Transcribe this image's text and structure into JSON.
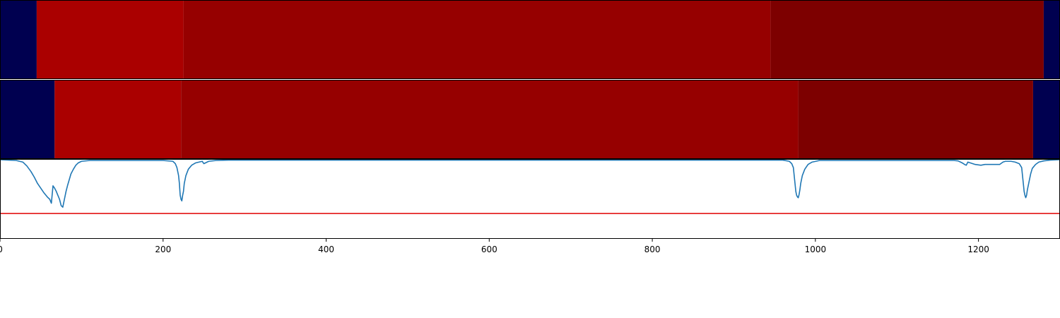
{
  "chart_data": {
    "type": "heatmap",
    "x_axis": {
      "range": [
        0,
        1300
      ],
      "ticks": [
        0,
        200,
        400,
        600,
        800,
        1000,
        1200
      ],
      "tick_labels": [
        "0",
        "200",
        "400",
        "600",
        "800",
        "1000",
        "1200"
      ]
    },
    "tracks": [
      {
        "segments": [
          {
            "start": 0,
            "end": 45,
            "color": "#000050"
          },
          {
            "start": 45,
            "end": 225,
            "color": "#aa0000"
          },
          {
            "start": 225,
            "end": 945,
            "color": "#960000"
          },
          {
            "start": 945,
            "end": 1280,
            "color": "#7d0000"
          },
          {
            "start": 1280,
            "end": 1300,
            "color": "#000050"
          }
        ]
      },
      {
        "segments": [
          {
            "start": 0,
            "end": 67,
            "color": "#000050"
          },
          {
            "start": 67,
            "end": 222,
            "color": "#aa0000"
          },
          {
            "start": 222,
            "end": 979,
            "color": "#960000"
          },
          {
            "start": 979,
            "end": 1267,
            "color": "#7d0000"
          },
          {
            "start": 1267,
            "end": 1300,
            "color": "#000050"
          }
        ]
      }
    ],
    "signal": {
      "color": "#1f77b4",
      "y_range": [
        0,
        1
      ],
      "threshold": {
        "value": 0.32,
        "color": "#e00000"
      },
      "points": [
        [
          0,
          1.0
        ],
        [
          20,
          0.99
        ],
        [
          28,
          0.97
        ],
        [
          33,
          0.92
        ],
        [
          38,
          0.85
        ],
        [
          42,
          0.78
        ],
        [
          46,
          0.7
        ],
        [
          50,
          0.64
        ],
        [
          54,
          0.58
        ],
        [
          58,
          0.53
        ],
        [
          61,
          0.5
        ],
        [
          63,
          0.45
        ],
        [
          65,
          0.67
        ],
        [
          67,
          0.64
        ],
        [
          69,
          0.6
        ],
        [
          71,
          0.55
        ],
        [
          73,
          0.5
        ],
        [
          75,
          0.42
        ],
        [
          77,
          0.4
        ],
        [
          79,
          0.5
        ],
        [
          81,
          0.6
        ],
        [
          83,
          0.68
        ],
        [
          85,
          0.75
        ],
        [
          87,
          0.82
        ],
        [
          90,
          0.88
        ],
        [
          93,
          0.93
        ],
        [
          96,
          0.96
        ],
        [
          100,
          0.98
        ],
        [
          110,
          0.99
        ],
        [
          200,
          0.99
        ],
        [
          212,
          0.98
        ],
        [
          215,
          0.95
        ],
        [
          217,
          0.9
        ],
        [
          219,
          0.8
        ],
        [
          220,
          0.7
        ],
        [
          221,
          0.55
        ],
        [
          222,
          0.5
        ],
        [
          223,
          0.48
        ],
        [
          224,
          0.55
        ],
        [
          225,
          0.6
        ],
        [
          226,
          0.7
        ],
        [
          228,
          0.8
        ],
        [
          231,
          0.88
        ],
        [
          235,
          0.93
        ],
        [
          240,
          0.96
        ],
        [
          248,
          0.98
        ],
        [
          250,
          0.95
        ],
        [
          252,
          0.96
        ],
        [
          256,
          0.98
        ],
        [
          265,
          0.99
        ],
        [
          280,
          0.995
        ],
        [
          500,
          0.995
        ],
        [
          960,
          0.995
        ],
        [
          968,
          0.98
        ],
        [
          971,
          0.95
        ],
        [
          973,
          0.9
        ],
        [
          974,
          0.8
        ],
        [
          975,
          0.7
        ],
        [
          976,
          0.6
        ],
        [
          977,
          0.55
        ],
        [
          978,
          0.53
        ],
        [
          979,
          0.52
        ],
        [
          980,
          0.56
        ],
        [
          981,
          0.62
        ],
        [
          982,
          0.7
        ],
        [
          984,
          0.8
        ],
        [
          987,
          0.88
        ],
        [
          991,
          0.94
        ],
        [
          996,
          0.97
        ],
        [
          1005,
          0.99
        ],
        [
          1100,
          0.99
        ],
        [
          1170,
          0.99
        ],
        [
          1175,
          0.985
        ],
        [
          1180,
          0.96
        ],
        [
          1183,
          0.94
        ],
        [
          1185,
          0.93
        ],
        [
          1187,
          0.97
        ],
        [
          1190,
          0.96
        ],
        [
          1196,
          0.94
        ],
        [
          1203,
          0.93
        ],
        [
          1208,
          0.94
        ],
        [
          1214,
          0.94
        ],
        [
          1220,
          0.94
        ],
        [
          1226,
          0.94
        ],
        [
          1230,
          0.97
        ],
        [
          1233,
          0.98
        ],
        [
          1240,
          0.98
        ],
        [
          1245,
          0.97
        ],
        [
          1250,
          0.95
        ],
        [
          1253,
          0.9
        ],
        [
          1254,
          0.8
        ],
        [
          1255,
          0.7
        ],
        [
          1256,
          0.6
        ],
        [
          1257,
          0.55
        ],
        [
          1258,
          0.52
        ],
        [
          1259,
          0.55
        ],
        [
          1260,
          0.62
        ],
        [
          1262,
          0.72
        ],
        [
          1264,
          0.82
        ],
        [
          1266,
          0.89
        ],
        [
          1270,
          0.94
        ],
        [
          1274,
          0.97
        ],
        [
          1280,
          0.985
        ],
        [
          1288,
          0.995
        ],
        [
          1300,
          1.0
        ]
      ]
    }
  }
}
